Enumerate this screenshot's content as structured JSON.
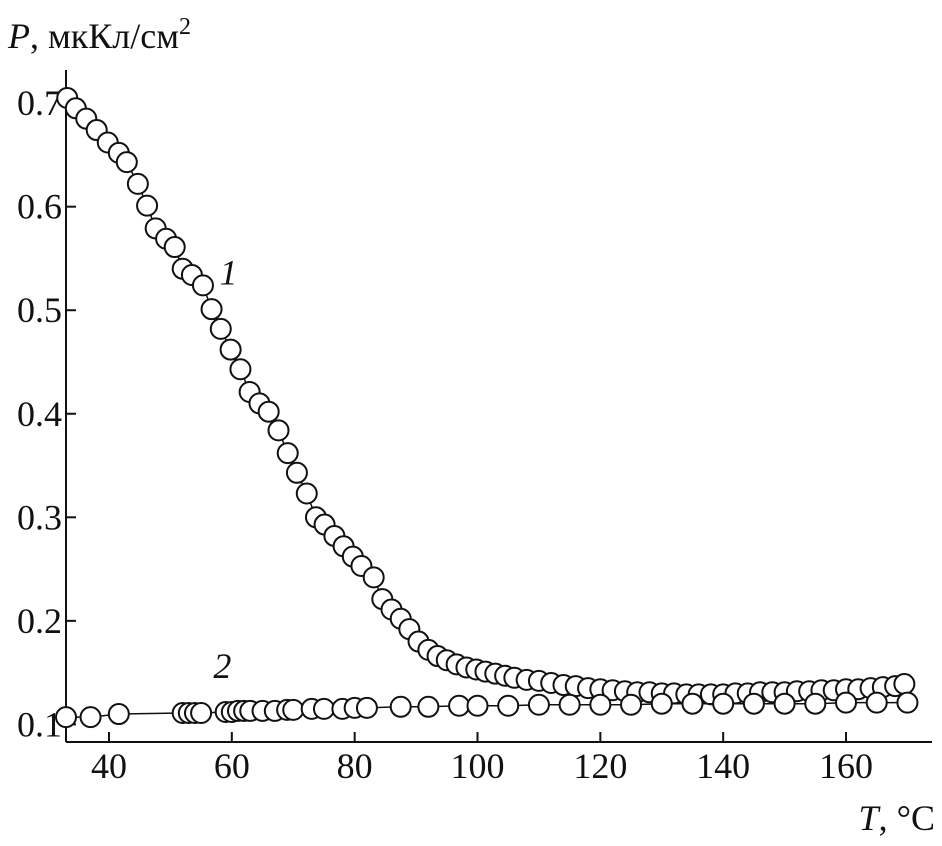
{
  "chart_data": {
    "type": "line",
    "y_label": {
      "symbol": "P",
      "unit": ", мкКл/см",
      "exponent": "2"
    },
    "x_label": {
      "symbol": "T",
      "unit": ", °C"
    },
    "xlim": [
      33,
      174
    ],
    "xticks": [
      40,
      60,
      80,
      100,
      120,
      140,
      160
    ],
    "ylim": [
      0.083,
      0.732
    ],
    "yticks": [
      0.1,
      0.2,
      0.3,
      0.4,
      0.5,
      0.6,
      0.7
    ],
    "color": "#111111",
    "series": [
      {
        "name": "1",
        "label_position": [
          58,
          0.525
        ],
        "x": [
          33.2,
          34.6,
          36.3,
          38.0,
          39.8,
          41.6,
          42.9,
          44.7,
          46.2,
          47.6,
          49.3,
          50.7,
          52.0,
          53.5,
          55.3,
          56.7,
          58.2,
          59.8,
          61.4,
          62.9,
          64.5,
          66.0,
          67.6,
          69.1,
          70.6,
          72.2,
          73.7,
          75.1,
          76.7,
          78.2,
          79.7,
          81.1,
          83.1,
          84.5,
          86.0,
          87.5,
          88.9,
          90.4,
          92.0,
          93.5,
          95.0,
          96.6,
          98.2,
          99.8,
          101.3,
          102.9,
          104.5,
          106,
          108,
          110,
          112,
          114,
          116,
          118,
          120,
          122,
          124,
          126,
          128,
          130,
          132,
          134,
          136,
          138,
          140,
          142,
          144,
          146,
          148,
          150,
          152,
          154,
          156,
          158,
          160,
          162,
          164,
          166,
          168,
          169.5
        ],
        "values": [
          0.705,
          0.695,
          0.685,
          0.674,
          0.662,
          0.652,
          0.643,
          0.622,
          0.601,
          0.579,
          0.569,
          0.561,
          0.54,
          0.534,
          0.524,
          0.501,
          0.482,
          0.462,
          0.443,
          0.421,
          0.41,
          0.402,
          0.384,
          0.362,
          0.343,
          0.323,
          0.3,
          0.293,
          0.282,
          0.272,
          0.262,
          0.253,
          0.242,
          0.221,
          0.211,
          0.202,
          0.192,
          0.18,
          0.172,
          0.166,
          0.162,
          0.158,
          0.155,
          0.153,
          0.151,
          0.149,
          0.147,
          0.145,
          0.143,
          0.142,
          0.14,
          0.138,
          0.137,
          0.135,
          0.134,
          0.133,
          0.132,
          0.131,
          0.131,
          0.13,
          0.13,
          0.129,
          0.129,
          0.129,
          0.129,
          0.13,
          0.13,
          0.131,
          0.131,
          0.131,
          0.132,
          0.132,
          0.133,
          0.133,
          0.134,
          0.134,
          0.135,
          0.136,
          0.137,
          0.139
        ]
      },
      {
        "name": "2",
        "label_position": [
          57,
          0.145
        ],
        "x": [
          33.0,
          37.0,
          41.6,
          52,
          53,
          54,
          55,
          59,
          60,
          61,
          62,
          63,
          65,
          67,
          69,
          70,
          73,
          75,
          78,
          80,
          82,
          87.5,
          92,
          97,
          100,
          105,
          110,
          115,
          120,
          125,
          130,
          135,
          140,
          145,
          150,
          155,
          160,
          165,
          170
        ],
        "values": [
          0.107,
          0.107,
          0.11,
          0.111,
          0.111,
          0.111,
          0.111,
          0.112,
          0.112,
          0.113,
          0.113,
          0.113,
          0.113,
          0.113,
          0.114,
          0.114,
          0.115,
          0.115,
          0.115,
          0.116,
          0.116,
          0.117,
          0.117,
          0.118,
          0.118,
          0.118,
          0.119,
          0.119,
          0.119,
          0.119,
          0.12,
          0.12,
          0.12,
          0.12,
          0.12,
          0.12,
          0.121,
          0.121,
          0.121
        ]
      }
    ]
  }
}
